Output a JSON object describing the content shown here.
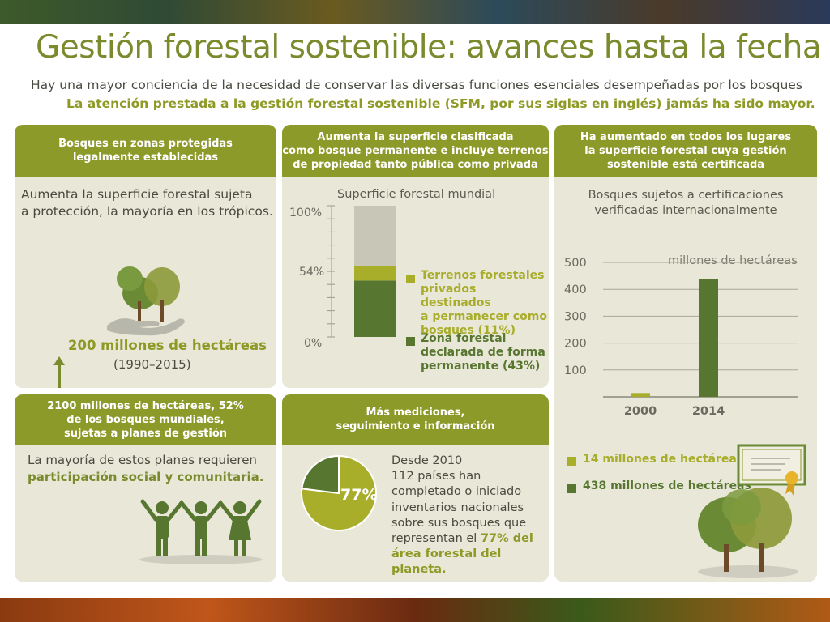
{
  "header": {
    "title": "Gestión forestal sostenible: avances hasta la fecha",
    "subtitle_line1": "Hay una mayor conciencia de la necesidad de conservar las diversas funciones esenciales desempeñadas por los bosques",
    "subtitle_line2": "La atención prestada a la gestión forestal sostenible (SFM, por sus siglas en inglés) jamás ha sido mayor."
  },
  "panel_protected": {
    "heading_line1": "Bosques en zonas protegidas",
    "heading_line2": "legalmente establecidas",
    "body_line1": "Aumenta la superficie forestal sujeta",
    "body_line2": "a protección, la mayoría en los trópicos.",
    "stat": "200 millones de hectáreas",
    "period": "(1990–2015)",
    "icons": [
      "trees-in-hand-icon",
      "arrow-up-icon"
    ]
  },
  "panel_permanent": {
    "heading_line1": "Aumenta la superficie clasificada",
    "heading_line2": "como bosque permanente e incluye terrenos",
    "heading_line3": "de propiedad tanto pública como privada",
    "chart_title": "Superficie forestal mundial",
    "tick_100": "100%",
    "tick_54": "54%",
    "tick_0": "0%",
    "legend_private_l1": "Terrenos forestales",
    "legend_private_l2": "privados destinados",
    "legend_private_l3": "a  permanecer como",
    "legend_private_l4": "bosques (11%)",
    "legend_permanent_l1": "Zona forestal",
    "legend_permanent_l2": "declarada de forma",
    "legend_permanent_l3": "permanente (43%)"
  },
  "panel_certified": {
    "heading_line1": "Ha aumentado en todos los lugares",
    "heading_line2": "la superficie forestal cuya gestión",
    "heading_line3": "sostenible está certificada",
    "chart_title_l1": "Bosques sujetos a certificaciones",
    "chart_title_l2": "verificadas internacionalmente",
    "unit": "millones de hectáreas",
    "legend_2000": "14 millones de hectáreas",
    "legend_2014": "438 millones de hectáreas",
    "icons": [
      "certificate-icon",
      "trees-icon"
    ]
  },
  "panel_management": {
    "heading_line1": "2100 millones de hectáreas, 52%",
    "heading_line2": "de los bosques mundiales,",
    "heading_line3": "sujetas a planes de gestión",
    "body_line1": "La mayoría de estos planes requieren",
    "body_line2": "participación social y comunitaria.",
    "icons": [
      "people-holding-hands-icon"
    ]
  },
  "panel_monitoring": {
    "heading_line1": "Más mediciones,",
    "heading_line2": "seguimiento e información",
    "pie_label": "77%",
    "body_l1": "Desde 2010",
    "body_l2": "112 países han",
    "body_l3": "completado o iniciado",
    "body_l4": "inventarios nacionales",
    "body_l5": "sobre sus bosques que",
    "body_l6_plain": "representan el ",
    "body_l6_bold": "77% del",
    "body_l7": "área forestal del planeta."
  },
  "colors": {
    "olive": "#8c9a2a",
    "dark_green": "#57762f",
    "light_olive": "#a8ad2a",
    "panel_bg": "#e9e7d7",
    "stack_top": "#c8c6b6"
  },
  "chart_data": [
    {
      "type": "bar",
      "stacked": true,
      "title": "Superficie forestal mundial",
      "ylabel": "",
      "ylim": [
        0,
        100
      ],
      "yticks": [
        "0%",
        "54%",
        "100%"
      ],
      "categories": [
        "Superficie forestal mundial"
      ],
      "series": [
        {
          "name": "Zona forestal declarada de forma permanente (43%)",
          "values": [
            43
          ],
          "color": "#57762f"
        },
        {
          "name": "Terrenos forestales privados destinados a permanecer como bosques (11%)",
          "values": [
            11
          ],
          "color": "#a8ad2a"
        },
        {
          "values": [
            46
          ],
          "color": "#c8c6b6"
        }
      ]
    },
    {
      "type": "bar",
      "title": "Bosques sujetos a certificaciones verificadas internacionalmente",
      "ylabel": "millones de hectáreas",
      "ylim": [
        0,
        500
      ],
      "yticks": [
        100,
        200,
        300,
        400,
        500
      ],
      "categories": [
        "2000",
        "2014"
      ],
      "values": [
        14,
        438
      ],
      "colors": [
        "#a8ad2a",
        "#57762f"
      ],
      "grid": true
    },
    {
      "type": "pie",
      "values": [
        77,
        23
      ],
      "labels": [
        "77%",
        ""
      ],
      "colors": [
        "#a8ad2a",
        "#57762f"
      ]
    }
  ]
}
